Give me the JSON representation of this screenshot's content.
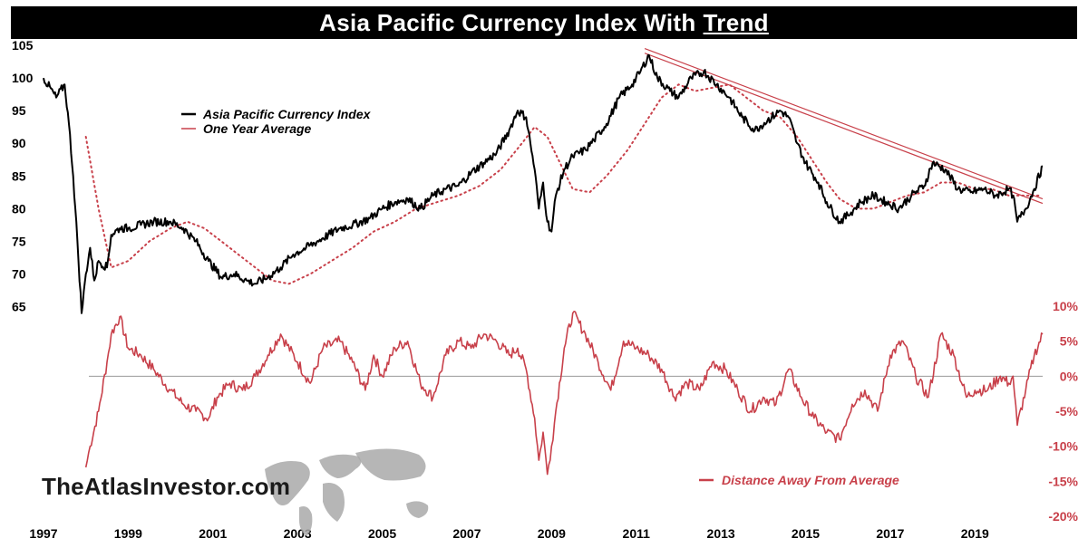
{
  "title": {
    "main": "Asia Pacific Currency Index With",
    "emphasis": "Trend"
  },
  "watermark": "TheAtlasInvestor.com",
  "colors": {
    "index": "#000000",
    "average": "#c8404a",
    "distance": "#c8404a",
    "trend": "#c8404a"
  },
  "chart_data": [
    {
      "type": "line",
      "title": "Asia Pacific Currency Index With Trend",
      "xlabel": "",
      "ylabel": "",
      "xlim": [
        1997,
        2020.6
      ],
      "ylim": [
        63,
        105
      ],
      "x_ticks": [
        "1997",
        "1999",
        "2001",
        "2003",
        "2005",
        "2007",
        "2009",
        "2011",
        "2013",
        "2015",
        "2017",
        "2019"
      ],
      "y_ticks": [
        65,
        70,
        75,
        80,
        85,
        90,
        95,
        100,
        105
      ],
      "legend": [
        "Asia Pacific Currency Index",
        "One Year Average"
      ],
      "legend_position": "upper-left",
      "series": [
        {
          "name": "Asia Pacific Currency Index",
          "style": "solid",
          "x": [
            1997.0,
            1997.3,
            1997.5,
            1997.6,
            1997.7,
            1997.8,
            1997.9,
            1998.0,
            1998.1,
            1998.2,
            1998.3,
            1998.5,
            1998.6,
            1998.8,
            1999.0,
            1999.3,
            1999.6,
            2000.0,
            2000.3,
            2000.6,
            2000.9,
            2001.2,
            2001.5,
            2001.8,
            2002.0,
            2002.3,
            2002.6,
            2002.9,
            2003.2,
            2003.6,
            2004.0,
            2004.3,
            2004.7,
            2005.0,
            2005.3,
            2005.6,
            2005.9,
            2006.2,
            2006.5,
            2006.8,
            2007.1,
            2007.4,
            2007.7,
            2008.0,
            2008.2,
            2008.4,
            2008.5,
            2008.6,
            2008.7,
            2008.8,
            2008.9,
            2009.0,
            2009.1,
            2009.3,
            2009.5,
            2009.8,
            2010.0,
            2010.3,
            2010.6,
            2010.9,
            2011.1,
            2011.3,
            2011.5,
            2011.8,
            2012.0,
            2012.3,
            2012.6,
            2012.9,
            2013.2,
            2013.5,
            2013.8,
            2014.1,
            2014.4,
            2014.6,
            2014.8,
            2015.0,
            2015.3,
            2015.5,
            2015.8,
            2016.0,
            2016.3,
            2016.6,
            2016.9,
            2017.2,
            2017.5,
            2017.8,
            2018.0,
            2018.3,
            2018.6,
            2018.9,
            2019.2,
            2019.5,
            2019.8,
            2019.9,
            2020.0,
            2020.2,
            2020.4,
            2020.6
          ],
          "y": [
            100,
            97,
            99,
            93,
            85,
            75,
            64,
            70,
            74,
            69,
            72,
            71,
            76,
            77,
            77,
            77.5,
            78,
            78,
            77,
            75,
            72,
            69.5,
            70,
            69,
            68.5,
            69.5,
            71,
            73,
            74,
            75.5,
            77,
            77.5,
            78.5,
            80,
            81,
            81.5,
            80,
            82,
            83,
            83.5,
            85.5,
            87,
            88.5,
            92,
            95,
            94,
            90,
            86,
            80,
            84,
            78,
            76.5,
            82,
            86,
            88,
            89,
            90.5,
            93,
            97,
            99,
            101,
            103.5,
            100,
            98,
            97,
            100,
            101,
            99,
            97,
            94,
            92,
            93.5,
            95,
            94,
            90,
            87,
            84,
            81,
            78,
            79,
            81,
            82,
            81,
            80,
            82,
            83.5,
            87,
            86,
            83,
            82.5,
            83,
            82,
            83,
            82,
            78,
            80,
            83,
            86.5
          ]
        },
        {
          "name": "One Year Average",
          "style": "dotted",
          "x": [
            1998.0,
            1998.3,
            1998.6,
            1999.0,
            1999.5,
            2000.0,
            2000.4,
            2000.8,
            2001.2,
            2001.6,
            2002.0,
            2002.4,
            2002.8,
            2003.3,
            2003.8,
            2004.3,
            2004.8,
            2005.3,
            2005.8,
            2006.3,
            2006.8,
            2007.3,
            2007.8,
            2008.3,
            2008.6,
            2008.9,
            2009.2,
            2009.5,
            2009.9,
            2010.3,
            2010.8,
            2011.2,
            2011.6,
            2012.0,
            2012.4,
            2012.8,
            2013.2,
            2013.6,
            2014.0,
            2014.4,
            2014.8,
            2015.2,
            2015.5,
            2015.8,
            2016.2,
            2016.6,
            2017.0,
            2017.4,
            2017.8,
            2018.2,
            2018.6,
            2019.0,
            2019.4,
            2019.8,
            2020.2,
            2020.5
          ],
          "y": [
            91,
            80,
            71,
            72,
            75,
            77,
            78,
            77,
            75,
            73,
            71,
            69,
            68.5,
            70,
            72,
            74,
            76.5,
            78,
            80,
            81,
            82,
            83.5,
            86,
            90,
            92.5,
            91,
            87,
            83,
            82.5,
            85,
            89,
            93,
            97,
            99,
            98,
            98.5,
            99,
            97,
            95,
            94,
            91,
            87,
            84,
            81.5,
            80,
            80,
            81,
            82,
            82.5,
            84,
            84,
            83,
            83,
            82,
            82,
            82
          ]
        }
      ],
      "trend_lines": [
        {
          "x": [
            2011.2,
            2020.6
          ],
          "y": [
            104.5,
            81.5
          ]
        },
        {
          "x": [
            2011.2,
            2020.6
          ],
          "y": [
            103.8,
            80.8
          ]
        }
      ]
    },
    {
      "type": "line",
      "xlim": [
        1997,
        2020.6
      ],
      "ylim": [
        -20,
        10
      ],
      "y_ticks": [
        "10%",
        "5%",
        "0%",
        "-5%",
        "-10%",
        "-15%",
        "-20%"
      ],
      "y_tick_values": [
        10,
        5,
        0,
        -5,
        -10,
        -15,
        -20
      ],
      "reference_line": 0,
      "legend": [
        "Distance Away From Average"
      ],
      "legend_position": "bottom-center",
      "series": [
        {
          "name": "Distance Away From Average",
          "x": [
            1998.0,
            1998.1,
            1998.3,
            1998.5,
            1998.6,
            1998.8,
            1999.0,
            1999.3,
            1999.6,
            2000.0,
            2000.3,
            2000.6,
            2000.9,
            2001.1,
            2001.4,
            2001.7,
            2002.0,
            2002.3,
            2002.6,
            2003.0,
            2003.3,
            2003.6,
            2004.0,
            2004.3,
            2004.6,
            2004.8,
            2005.0,
            2005.3,
            2005.6,
            2005.9,
            2006.2,
            2006.5,
            2006.8,
            2007.1,
            2007.4,
            2007.7,
            2008.0,
            2008.2,
            2008.4,
            2008.6,
            2008.7,
            2008.8,
            2008.9,
            2009.0,
            2009.1,
            2009.3,
            2009.5,
            2009.8,
            2010.1,
            2010.4,
            2010.7,
            2011.0,
            2011.3,
            2011.6,
            2011.9,
            2012.2,
            2012.5,
            2012.8,
            2013.1,
            2013.4,
            2013.7,
            2014.0,
            2014.3,
            2014.6,
            2014.9,
            2015.2,
            2015.5,
            2015.8,
            2016.1,
            2016.4,
            2016.7,
            2017.0,
            2017.3,
            2017.6,
            2017.9,
            2018.2,
            2018.5,
            2018.8,
            2019.0,
            2019.3,
            2019.6,
            2019.8,
            2019.9,
            2020.0,
            2020.2,
            2020.4,
            2020.6
          ],
          "y": [
            -13,
            -10,
            -5,
            2,
            6,
            8.5,
            4,
            3,
            1,
            -2,
            -4,
            -5,
            -6,
            -3,
            -1,
            -2,
            0,
            3,
            6,
            2,
            -1,
            4,
            5,
            2,
            -2,
            3,
            0,
            4,
            5,
            -1,
            -3,
            3,
            5,
            4,
            6,
            5,
            3,
            4,
            1,
            -6,
            -12,
            -8,
            -14,
            -10,
            -5,
            4,
            9,
            6,
            2,
            -2,
            5,
            4,
            3,
            1,
            -3,
            -1,
            -2,
            2,
            1,
            -2,
            -5,
            -3,
            -4,
            1,
            -3,
            -6,
            -8,
            -9,
            -4,
            -2,
            -5,
            3,
            5,
            0,
            -3,
            6,
            3,
            -3,
            -2,
            -2,
            0,
            -1,
            0,
            -7,
            -2,
            3,
            6
          ]
        }
      ]
    }
  ]
}
